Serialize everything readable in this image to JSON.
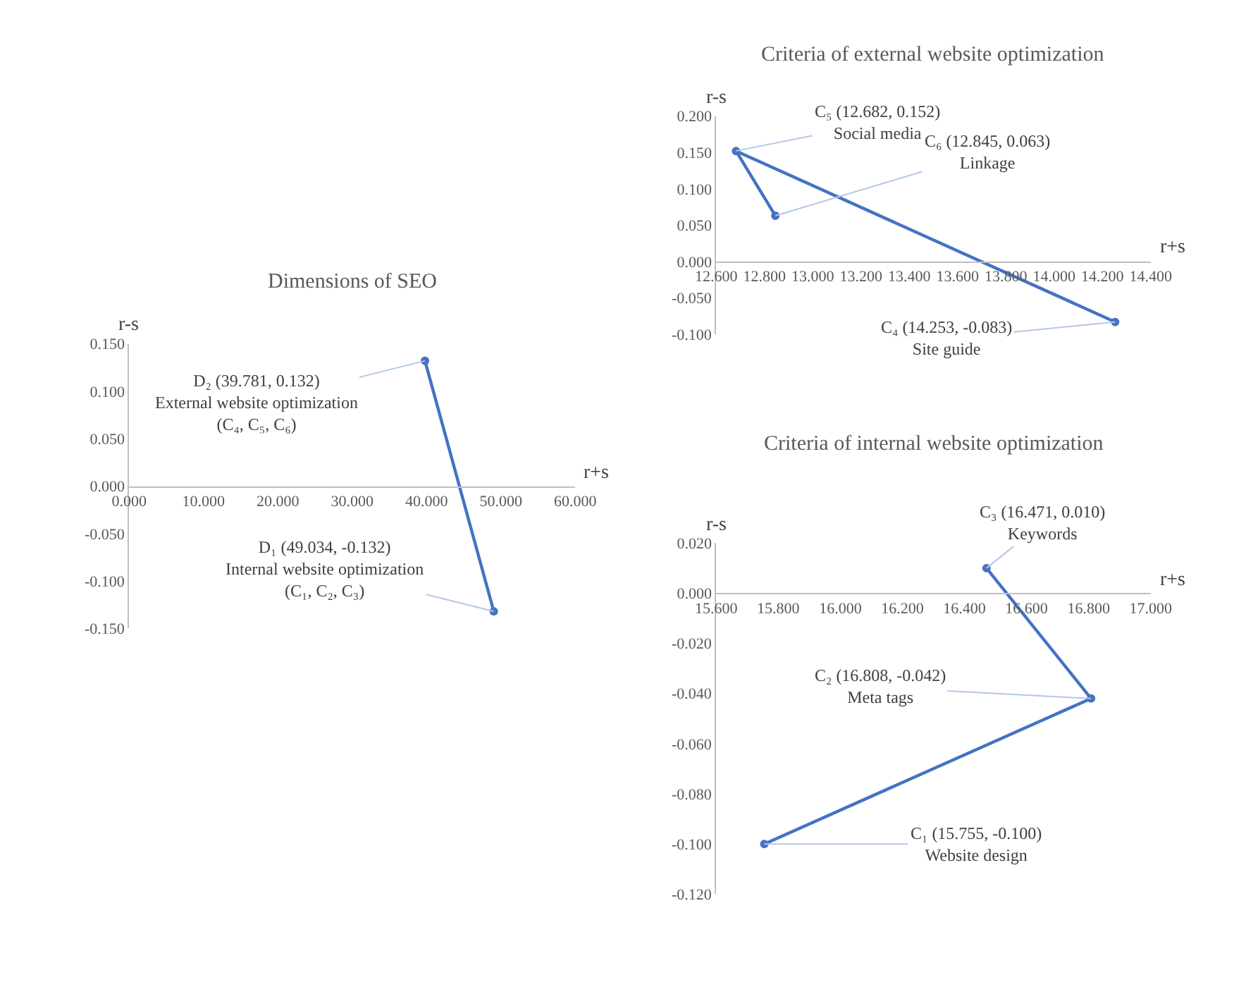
{
  "chart_data": [
    {
      "type": "line",
      "title": "Dimensions of SEO",
      "xlabel": "r+s",
      "ylabel": "r-s",
      "marker": "circle",
      "line_style": "solid",
      "xlim": [
        0,
        60
      ],
      "ylim": [
        -0.15,
        0.15
      ],
      "xticks": [
        {
          "value": 0,
          "label": "0.000"
        },
        {
          "value": 10,
          "label": "10.000"
        },
        {
          "value": 20,
          "label": "20.000"
        },
        {
          "value": 30,
          "label": "30.000"
        },
        {
          "value": 40,
          "label": "40.000"
        },
        {
          "value": 50,
          "label": "50.000"
        },
        {
          "value": 60,
          "label": "60.000"
        }
      ],
      "yticks": [
        {
          "value": -0.15,
          "label": "-0.150"
        },
        {
          "value": -0.1,
          "label": "-0.100"
        },
        {
          "value": -0.05,
          "label": "-0.050"
        },
        {
          "value": 0,
          "label": "0.000"
        },
        {
          "value": 0.05,
          "label": "0.050"
        },
        {
          "value": 0.1,
          "label": "0.100"
        },
        {
          "value": 0.15,
          "label": "0.150"
        }
      ],
      "x": [
        49.034,
        39.781
      ],
      "series": [
        {
          "color": "#4472c4",
          "values": [
            -0.132,
            0.132
          ]
        }
      ],
      "annotations": [
        {
          "text": "D₁ (49.034, -0.132)\nInternal website optimization\n(C₁, C₂, C₃)",
          "x": 49.034,
          "y": -0.132
        },
        {
          "text": "D₂ (39.781, 0.132)\nExternal website optimization\n(C₄, C₅, C₆)",
          "x": 39.781,
          "y": 0.132
        }
      ]
    },
    {
      "type": "line",
      "title": "Criteria of external website optimization",
      "xlabel": "r+s",
      "ylabel": "r-s",
      "marker": "circle",
      "line_style": "solid",
      "xlim": [
        12.6,
        14.4
      ],
      "ylim": [
        -0.1,
        0.2
      ],
      "xticks": [
        {
          "value": 12.6,
          "label": "12.600"
        },
        {
          "value": 12.8,
          "label": "12.800"
        },
        {
          "value": 13.0,
          "label": "13.000"
        },
        {
          "value": 13.2,
          "label": "13.200"
        },
        {
          "value": 13.4,
          "label": "13.400"
        },
        {
          "value": 13.6,
          "label": "13.600"
        },
        {
          "value": 13.8,
          "label": "13.800"
        },
        {
          "value": 14.0,
          "label": "14.000"
        },
        {
          "value": 14.2,
          "label": "14.200"
        },
        {
          "value": 14.4,
          "label": "14.400"
        }
      ],
      "yticks": [
        {
          "value": -0.1,
          "label": "-0.100"
        },
        {
          "value": -0.05,
          "label": "-0.050"
        },
        {
          "value": 0,
          "label": "0.000"
        },
        {
          "value": 0.05,
          "label": "0.050"
        },
        {
          "value": 0.1,
          "label": "0.100"
        },
        {
          "value": 0.15,
          "label": "0.150"
        },
        {
          "value": 0.2,
          "label": "0.200"
        }
      ],
      "x": [
        14.253,
        12.682,
        12.845
      ],
      "series": [
        {
          "color": "#4472c4",
          "values": [
            -0.083,
            0.152,
            0.063
          ]
        }
      ],
      "annotations": [
        {
          "text": "C₄ (14.253, -0.083)\nSite guide",
          "x": 14.253,
          "y": -0.083
        },
        {
          "text": "C₅ (12.682, 0.152)\nSocial media",
          "x": 12.682,
          "y": 0.152
        },
        {
          "text": "C₆ (12.845, 0.063)\nLinkage",
          "x": 12.845,
          "y": 0.063
        }
      ]
    },
    {
      "type": "line",
      "title": "Criteria of internal website optimization",
      "xlabel": "r+s",
      "ylabel": "r-s",
      "marker": "circle",
      "line_style": "solid",
      "xlim": [
        15.6,
        17.0
      ],
      "ylim": [
        -0.12,
        0.02
      ],
      "xticks": [
        {
          "value": 15.6,
          "label": "15.600"
        },
        {
          "value": 15.8,
          "label": "15.800"
        },
        {
          "value": 16.0,
          "label": "16.000"
        },
        {
          "value": 16.2,
          "label": "16.200"
        },
        {
          "value": 16.4,
          "label": "16.400"
        },
        {
          "value": 16.6,
          "label": "16.600"
        },
        {
          "value": 16.8,
          "label": "16.800"
        },
        {
          "value": 17.0,
          "label": "17.000"
        }
      ],
      "yticks": [
        {
          "value": -0.12,
          "label": "-0.120"
        },
        {
          "value": -0.1,
          "label": "-0.100"
        },
        {
          "value": -0.08,
          "label": "-0.080"
        },
        {
          "value": -0.06,
          "label": "-0.060"
        },
        {
          "value": -0.04,
          "label": "-0.040"
        },
        {
          "value": -0.02,
          "label": "-0.020"
        },
        {
          "value": 0,
          "label": "0.000"
        },
        {
          "value": 0.02,
          "label": "0.020"
        }
      ],
      "x": [
        15.755,
        16.808,
        16.471
      ],
      "series": [
        {
          "color": "#4472c4",
          "values": [
            -0.1,
            -0.042,
            0.01
          ]
        }
      ],
      "annotations": [
        {
          "text": "C₁ (15.755, -0.100)\nWebsite design",
          "x": 15.755,
          "y": -0.1
        },
        {
          "text": "C₂ (16.808, -0.042)\nMeta tags",
          "x": 16.808,
          "y": -0.042
        },
        {
          "text": "C₃ (16.471, 0.010)\nKeywords",
          "x": 16.471,
          "y": 0.01
        }
      ]
    }
  ]
}
